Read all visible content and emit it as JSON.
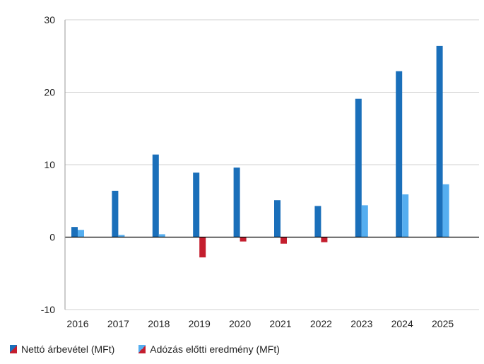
{
  "chart_data": {
    "type": "bar",
    "categories": [
      "2016",
      "2017",
      "2018",
      "2019",
      "2020",
      "2021",
      "2022",
      "2023",
      "2024",
      "2025"
    ],
    "series": [
      {
        "name": "Nettó árbevétel (MFt)",
        "values": [
          1.4,
          6.4,
          11.4,
          8.9,
          9.6,
          5.1,
          4.3,
          19.1,
          22.9,
          26.4
        ],
        "color": "#1a6fba",
        "negative_color": "#c41e2e"
      },
      {
        "name": "Adózás előtti eredmény (MFt)",
        "values": [
          1.0,
          0.3,
          0.4,
          -2.8,
          -0.6,
          -0.9,
          -0.7,
          4.4,
          5.9,
          7.3
        ],
        "color": "#55aef0",
        "negative_color": "#c41e2e"
      }
    ],
    "ylim": [
      -10,
      30
    ],
    "yticks": [
      "30",
      "20",
      "10",
      "0",
      "-10"
    ],
    "grid": true,
    "legend_position": "bottom-left"
  }
}
